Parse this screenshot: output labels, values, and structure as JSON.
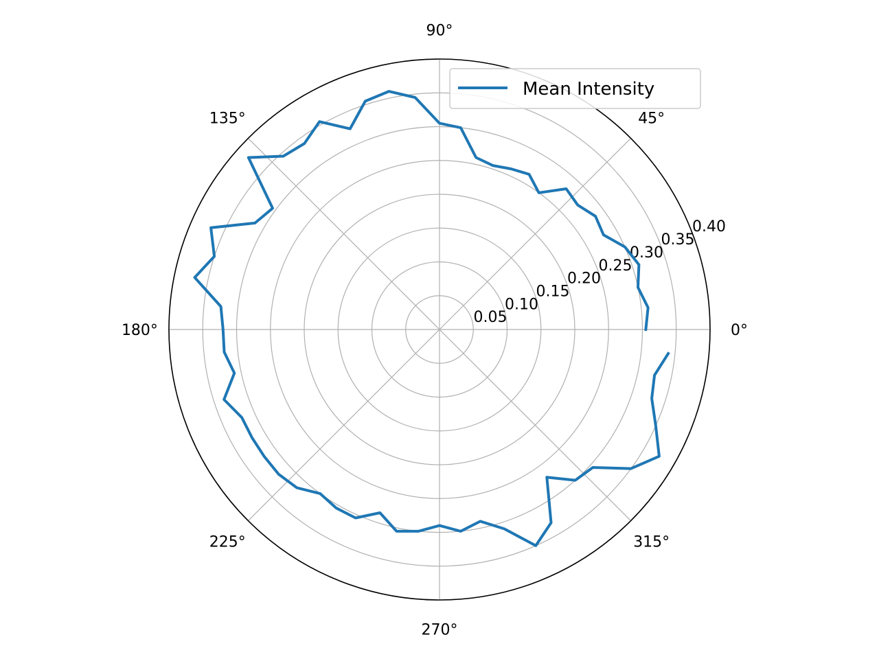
{
  "chart_data": {
    "type": "line",
    "projection": "polar",
    "theta_unit": "degrees",
    "rlim": [
      0,
      0.4
    ],
    "grid": true,
    "legend_placement": "top-right",
    "theta_tick_labels": [
      "0°",
      "45°",
      "90°",
      "135°",
      "180°",
      "225°",
      "270°",
      "315°"
    ],
    "r_tick_labels": [
      "0.05",
      "0.10",
      "0.15",
      "0.20",
      "0.25",
      "0.30",
      "0.35",
      "0.40"
    ],
    "series": [
      {
        "name": "Mean Intensity",
        "color": "#1f77b4",
        "theta": [
          0,
          6,
          12,
          18,
          24,
          30,
          36,
          42,
          48,
          54,
          60,
          66,
          72,
          78,
          84,
          90,
          96,
          102,
          108,
          114,
          120,
          126,
          132,
          138,
          144,
          150,
          156,
          162,
          168,
          174,
          180,
          186,
          192,
          198,
          204,
          210,
          216,
          222,
          228,
          234,
          240,
          246,
          252,
          258,
          264,
          270,
          276,
          282,
          288,
          294,
          300,
          306,
          312,
          318,
          324,
          330,
          336,
          342,
          348,
          354
        ],
        "r": [
          0.305,
          0.31,
          0.3,
          0.31,
          0.3,
          0.28,
          0.285,
          0.275,
          0.28,
          0.25,
          0.265,
          0.26,
          0.255,
          0.26,
          0.3,
          0.305,
          0.345,
          0.36,
          0.355,
          0.325,
          0.355,
          0.34,
          0.345,
          0.38,
          0.305,
          0.315,
          0.37,
          0.35,
          0.37,
          0.325,
          0.32,
          0.32,
          0.31,
          0.335,
          0.32,
          0.32,
          0.32,
          0.32,
          0.315,
          0.3,
          0.305,
          0.305,
          0.285,
          0.305,
          0.3,
          0.29,
          0.3,
          0.29,
          0.31,
          0.35,
          0.33,
          0.27,
          0.3,
          0.305,
          0.35,
          0.375,
          0.35,
          0.33,
          0.325,
          0.34
        ]
      }
    ]
  }
}
